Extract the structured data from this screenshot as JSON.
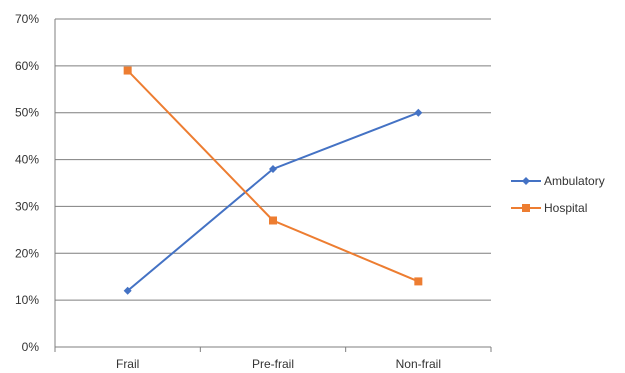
{
  "chart_data": {
    "type": "line",
    "categories": [
      "Frail",
      "Pre-frail",
      "Non-frail"
    ],
    "series": [
      {
        "name": "Ambulatory",
        "values": [
          12,
          38,
          50
        ],
        "color": "#4472C4",
        "marker": "diamond"
      },
      {
        "name": "Hospital",
        "values": [
          59,
          27,
          14
        ],
        "color": "#ED7D31",
        "marker": "square"
      }
    ],
    "ylim": [
      0,
      70
    ],
    "yticks": [
      0,
      10,
      20,
      30,
      40,
      50,
      60,
      70
    ],
    "ytick_suffix": "%",
    "grid": true,
    "legend_position": "right",
    "title": "",
    "xlabel": "",
    "ylabel": ""
  }
}
